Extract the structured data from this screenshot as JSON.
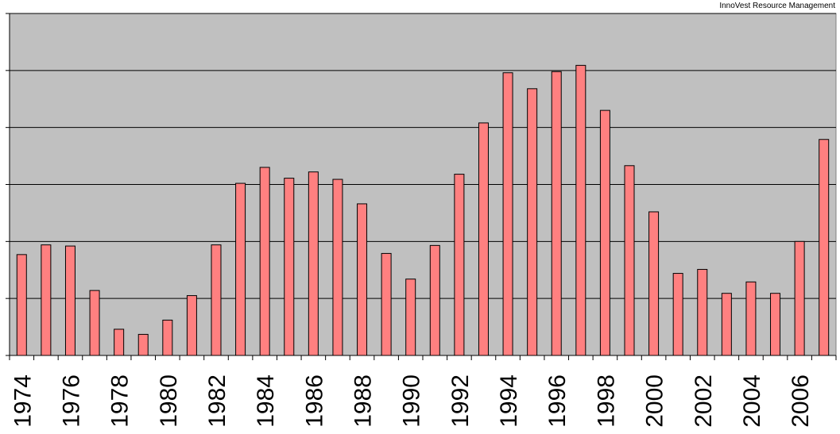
{
  "watermark": "InnoVest Resource Management",
  "chart_data": {
    "type": "bar",
    "title": "",
    "xlabel": "",
    "ylabel": "",
    "grid": true,
    "plot_background": "#c0c0c0",
    "bar_color": "#ff8080",
    "ylim": [
      0,
      6
    ],
    "categories": [
      "1974",
      "1975",
      "1976",
      "1977",
      "1978",
      "1979",
      "1980",
      "1981",
      "1982",
      "1983",
      "1984",
      "1985",
      "1986",
      "1987",
      "1988",
      "1989",
      "1990",
      "1991",
      "1992",
      "1993",
      "1994",
      "1995",
      "1996",
      "1997",
      "1998",
      "1999",
      "2000",
      "2001",
      "2002",
      "2003",
      "2004",
      "2005",
      "2006",
      "2007"
    ],
    "tick_labels": [
      "1974",
      "",
      "1976",
      "",
      "1978",
      "",
      "1980",
      "",
      "1982",
      "",
      "1984",
      "",
      "1986",
      "",
      "1988",
      "",
      "1990",
      "",
      "1992",
      "",
      "1994",
      "",
      "1996",
      "",
      "1998",
      "",
      "2000",
      "",
      "2002",
      "",
      "2004",
      "",
      "2006",
      ""
    ],
    "values": [
      1.77,
      1.94,
      1.92,
      1.14,
      0.46,
      0.37,
      0.62,
      1.05,
      1.94,
      3.02,
      3.3,
      3.11,
      3.22,
      3.09,
      2.66,
      1.79,
      1.34,
      1.93,
      3.18,
      4.08,
      4.96,
      4.68,
      4.98,
      5.09,
      4.3,
      3.33,
      2.52,
      1.44,
      1.51,
      1.09,
      1.29,
      1.09,
      2.0,
      3.79
    ]
  }
}
